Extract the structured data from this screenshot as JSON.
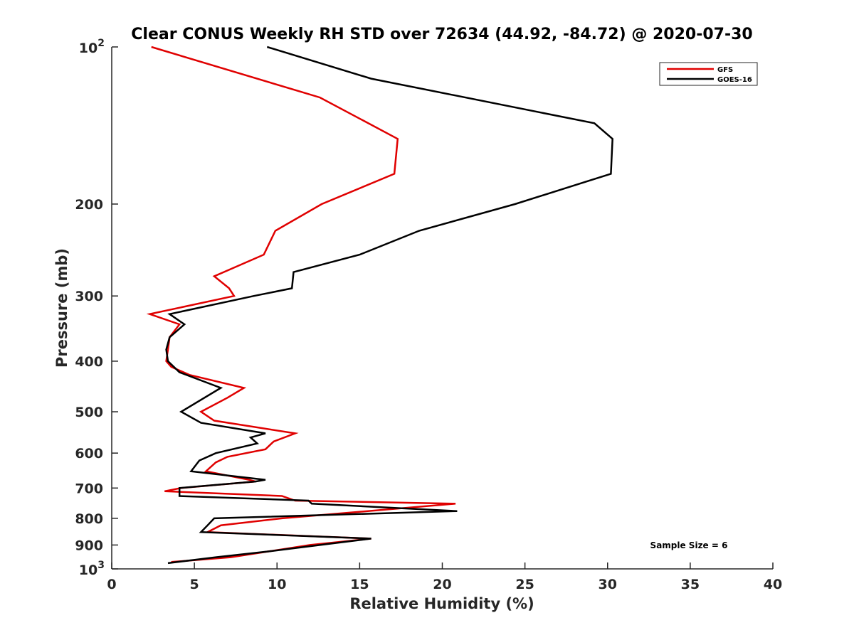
{
  "chart_data": {
    "type": "line",
    "title": "Clear CONUS Weekly RH STD over 72634 (44.92, -84.72) @ 2020-07-30",
    "xlabel": "Relative Humidity (%)",
    "ylabel": "Pressure (mb)",
    "xlim": [
      0,
      40
    ],
    "ylim": [
      100,
      1000
    ],
    "yscale": "log",
    "y_reversed": true,
    "x_ticks": [
      "0",
      "5",
      "10",
      "15",
      "20",
      "25",
      "30",
      "35",
      "40"
    ],
    "y_ticks": [
      {
        "value": 100,
        "base": "10",
        "exp": "2"
      },
      {
        "value": 200,
        "label": "200"
      },
      {
        "value": 300,
        "label": "300"
      },
      {
        "value": 400,
        "label": "400"
      },
      {
        "value": 500,
        "label": "500"
      },
      {
        "value": 600,
        "label": "600"
      },
      {
        "value": 700,
        "label": "700"
      },
      {
        "value": 800,
        "label": "800"
      },
      {
        "value": 900,
        "label": "900"
      },
      {
        "value": 1000,
        "base": "10",
        "exp": "3"
      }
    ],
    "legend_position": "top-right",
    "annotation": "Sample Size = 6",
    "series": [
      {
        "name": "GFS",
        "color": "#e00000",
        "points": [
          [
            2.4,
            100
          ],
          [
            12.6,
            125
          ],
          [
            17.3,
            150
          ],
          [
            17.1,
            175
          ],
          [
            12.7,
            200
          ],
          [
            9.9,
            225
          ],
          [
            9.2,
            250
          ],
          [
            6.2,
            275
          ],
          [
            7.1,
            290
          ],
          [
            7.4,
            300
          ],
          [
            2.3,
            325
          ],
          [
            4.1,
            340
          ],
          [
            3.5,
            360
          ],
          [
            3.4,
            380
          ],
          [
            3.3,
            400
          ],
          [
            3.6,
            410
          ],
          [
            4.7,
            425
          ],
          [
            8.0,
            450
          ],
          [
            7.0,
            470
          ],
          [
            5.4,
            500
          ],
          [
            6.2,
            520
          ],
          [
            11.1,
            550
          ],
          [
            9.8,
            570
          ],
          [
            9.3,
            590
          ],
          [
            7.0,
            610
          ],
          [
            6.3,
            625
          ],
          [
            5.7,
            650
          ],
          [
            8.3,
            675
          ],
          [
            8.7,
            680
          ],
          [
            4.2,
            700
          ],
          [
            3.2,
            710
          ],
          [
            10.3,
            725
          ],
          [
            11.1,
            740
          ],
          [
            20.8,
            750
          ],
          [
            10.3,
            800
          ],
          [
            6.6,
            825
          ],
          [
            5.8,
            850
          ],
          [
            15.7,
            875
          ],
          [
            12.0,
            900
          ],
          [
            7.2,
            950
          ],
          [
            3.6,
            970
          ]
        ]
      },
      {
        "name": "GOES-16",
        "color": "#000000",
        "points": [
          [
            9.4,
            100
          ],
          [
            15.7,
            115
          ],
          [
            29.2,
            140
          ],
          [
            30.3,
            150
          ],
          [
            30.2,
            175
          ],
          [
            24.4,
            200
          ],
          [
            18.6,
            225
          ],
          [
            15.0,
            250
          ],
          [
            11.0,
            270
          ],
          [
            10.9,
            290
          ],
          [
            8.6,
            300
          ],
          [
            3.5,
            325
          ],
          [
            4.4,
            340
          ],
          [
            3.5,
            360
          ],
          [
            3.3,
            380
          ],
          [
            3.4,
            400
          ],
          [
            4.1,
            420
          ],
          [
            6.6,
            450
          ],
          [
            4.2,
            500
          ],
          [
            5.4,
            525
          ],
          [
            9.3,
            550
          ],
          [
            8.4,
            560
          ],
          [
            8.8,
            575
          ],
          [
            6.3,
            600
          ],
          [
            5.3,
            620
          ],
          [
            4.8,
            650
          ],
          [
            9.3,
            675
          ],
          [
            8.7,
            680
          ],
          [
            4.1,
            700
          ],
          [
            4.1,
            725
          ],
          [
            11.9,
            740
          ],
          [
            12.1,
            750
          ],
          [
            20.9,
            775
          ],
          [
            6.2,
            800
          ],
          [
            5.8,
            825
          ],
          [
            5.4,
            850
          ],
          [
            15.7,
            875
          ],
          [
            12.6,
            900
          ],
          [
            9.6,
            925
          ],
          [
            6.3,
            950
          ],
          [
            3.4,
            975
          ]
        ]
      }
    ]
  }
}
